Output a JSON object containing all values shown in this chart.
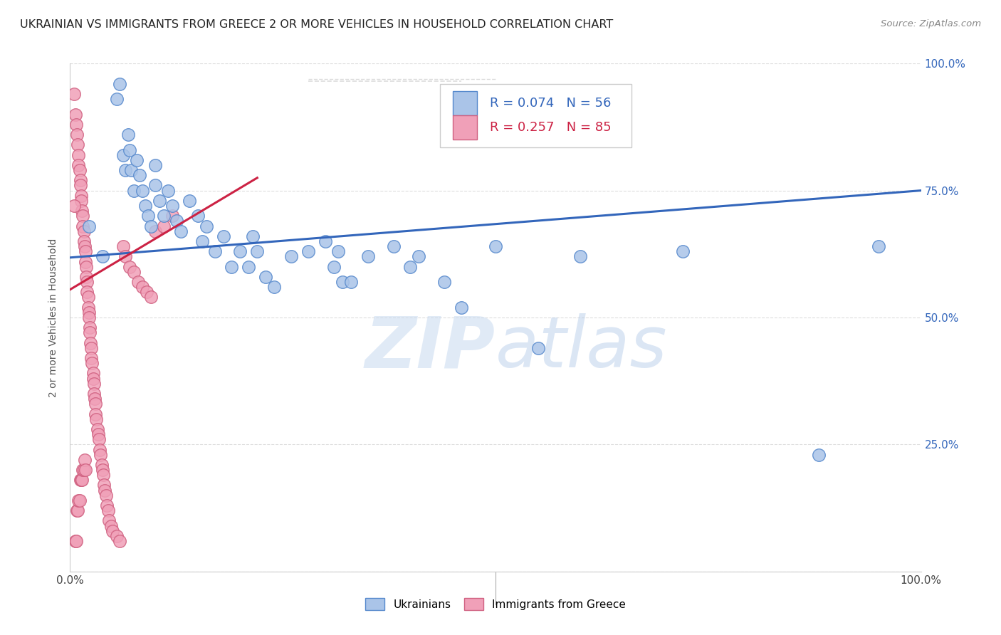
{
  "title": "UKRAINIAN VS IMMIGRANTS FROM GREECE 2 OR MORE VEHICLES IN HOUSEHOLD CORRELATION CHART",
  "source": "Source: ZipAtlas.com",
  "ylabel": "2 or more Vehicles in Household",
  "legend_blue_r": "R = 0.074",
  "legend_blue_n": "N = 56",
  "legend_pink_r": "R = 0.257",
  "legend_pink_n": "N = 85",
  "legend_blue_label": "Ukrainians",
  "legend_pink_label": "Immigrants from Greece",
  "xlim": [
    0,
    1
  ],
  "ylim": [
    0,
    1
  ],
  "xticks": [
    0,
    0.25,
    0.5,
    0.75,
    1.0
  ],
  "yticks": [
    0,
    0.25,
    0.5,
    0.75,
    1.0
  ],
  "xticklabels": [
    "0.0%",
    "",
    "",
    "",
    "100.0%"
  ],
  "yticklabels_right": [
    "",
    "25.0%",
    "50.0%",
    "75.0%",
    "100.0%"
  ],
  "blue_scatter_x": [
    0.022,
    0.038,
    0.055,
    0.058,
    0.062,
    0.065,
    0.068,
    0.07,
    0.072,
    0.075,
    0.078,
    0.082,
    0.085,
    0.088,
    0.092,
    0.095,
    0.1,
    0.1,
    0.105,
    0.11,
    0.115,
    0.12,
    0.125,
    0.13,
    0.14,
    0.15,
    0.155,
    0.16,
    0.17,
    0.18,
    0.19,
    0.2,
    0.21,
    0.215,
    0.22,
    0.23,
    0.24,
    0.26,
    0.28,
    0.3,
    0.31,
    0.315,
    0.32,
    0.33,
    0.35,
    0.38,
    0.4,
    0.41,
    0.44,
    0.46,
    0.5,
    0.55,
    0.6,
    0.72,
    0.88,
    0.95
  ],
  "blue_scatter_y": [
    0.68,
    0.62,
    0.93,
    0.96,
    0.82,
    0.79,
    0.86,
    0.83,
    0.79,
    0.75,
    0.81,
    0.78,
    0.75,
    0.72,
    0.7,
    0.68,
    0.8,
    0.76,
    0.73,
    0.7,
    0.75,
    0.72,
    0.69,
    0.67,
    0.73,
    0.7,
    0.65,
    0.68,
    0.63,
    0.66,
    0.6,
    0.63,
    0.6,
    0.66,
    0.63,
    0.58,
    0.56,
    0.62,
    0.63,
    0.65,
    0.6,
    0.63,
    0.57,
    0.57,
    0.62,
    0.64,
    0.6,
    0.62,
    0.57,
    0.52,
    0.64,
    0.44,
    0.62,
    0.63,
    0.23,
    0.64
  ],
  "pink_scatter_x": [
    0.005,
    0.006,
    0.007,
    0.008,
    0.009,
    0.01,
    0.01,
    0.011,
    0.012,
    0.012,
    0.013,
    0.013,
    0.014,
    0.015,
    0.015,
    0.016,
    0.016,
    0.017,
    0.018,
    0.018,
    0.019,
    0.019,
    0.02,
    0.02,
    0.021,
    0.021,
    0.022,
    0.022,
    0.023,
    0.023,
    0.024,
    0.025,
    0.025,
    0.026,
    0.027,
    0.027,
    0.028,
    0.028,
    0.029,
    0.03,
    0.03,
    0.031,
    0.032,
    0.033,
    0.034,
    0.035,
    0.036,
    0.037,
    0.038,
    0.039,
    0.04,
    0.041,
    0.042,
    0.043,
    0.045,
    0.046,
    0.048,
    0.05,
    0.055,
    0.058,
    0.062,
    0.065,
    0.07,
    0.075,
    0.08,
    0.085,
    0.09,
    0.095,
    0.1,
    0.11,
    0.12,
    0.005,
    0.006,
    0.007,
    0.008,
    0.009,
    0.01,
    0.011,
    0.012,
    0.013,
    0.014,
    0.015,
    0.016,
    0.017,
    0.018
  ],
  "pink_scatter_y": [
    0.94,
    0.9,
    0.88,
    0.86,
    0.84,
    0.82,
    0.8,
    0.79,
    0.77,
    0.76,
    0.74,
    0.73,
    0.71,
    0.7,
    0.68,
    0.67,
    0.65,
    0.64,
    0.63,
    0.61,
    0.6,
    0.58,
    0.57,
    0.55,
    0.54,
    0.52,
    0.51,
    0.5,
    0.48,
    0.47,
    0.45,
    0.44,
    0.42,
    0.41,
    0.39,
    0.38,
    0.37,
    0.35,
    0.34,
    0.33,
    0.31,
    0.3,
    0.28,
    0.27,
    0.26,
    0.24,
    0.23,
    0.21,
    0.2,
    0.19,
    0.17,
    0.16,
    0.15,
    0.13,
    0.12,
    0.1,
    0.09,
    0.08,
    0.07,
    0.06,
    0.64,
    0.62,
    0.6,
    0.59,
    0.57,
    0.56,
    0.55,
    0.54,
    0.67,
    0.68,
    0.7,
    0.72,
    0.06,
    0.06,
    0.12,
    0.12,
    0.14,
    0.14,
    0.18,
    0.18,
    0.18,
    0.2,
    0.2,
    0.22,
    0.2
  ],
  "blue_line_x": [
    0.0,
    1.0
  ],
  "blue_line_y": [
    0.618,
    0.75
  ],
  "pink_line_x": [
    0.0,
    0.22
  ],
  "pink_line_y": [
    0.555,
    0.775
  ],
  "diag_line_x": [
    0.28,
    0.5
  ],
  "diag_line_y": [
    0.96,
    0.96
  ],
  "blue_dot_color": "#aac4e8",
  "blue_dot_edge": "#5588cc",
  "pink_dot_color": "#f0a0b8",
  "pink_dot_edge": "#d06080",
  "blue_line_color": "#3366bb",
  "pink_line_color": "#cc2244",
  "title_color": "#222222",
  "title_fontsize": 11.5,
  "source_fontsize": 9.5,
  "watermark_zip": "ZIP",
  "watermark_atlas": "atlas",
  "background_color": "#ffffff",
  "grid_color": "#dddddd"
}
